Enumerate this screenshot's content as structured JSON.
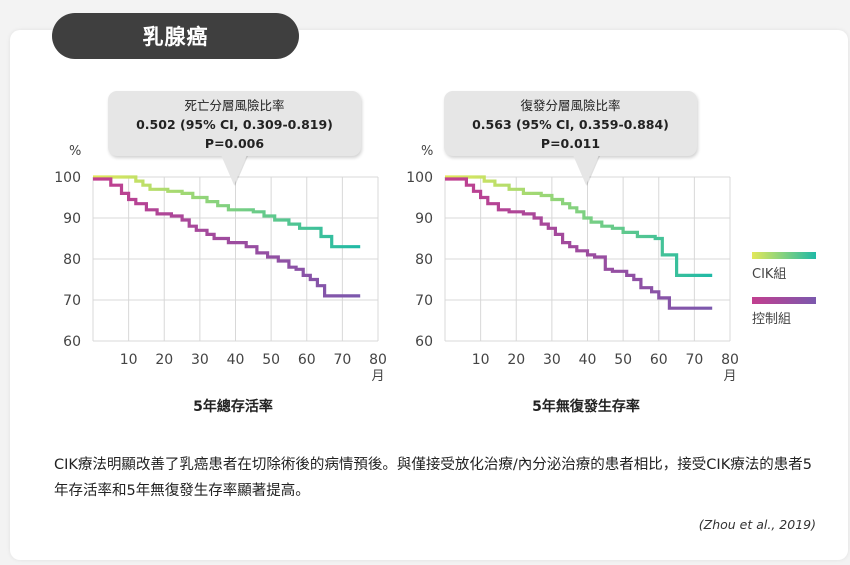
{
  "header": {
    "title": "乳腺癌"
  },
  "units": {
    "percent": "%",
    "month": "月"
  },
  "legend": [
    {
      "label": "CIK組",
      "color_start": "#e3e85a",
      "color_end": "#1fb9a6"
    },
    {
      "label": "控制組",
      "color_start": "#c23f8f",
      "color_end": "#7b58ad"
    }
  ],
  "description": "CIK療法明顯改善了乳癌患者在切除術後的病情預後。與僅接受放化治療/內分泌治療的患者相比，接受CIK療法的患者5年存活率和5年無復發生存率顯著提高。",
  "citation": "(Zhou et al., 2019)",
  "chart_data": [
    {
      "type": "line",
      "xlabel": "5年總存活率",
      "x_unit": "月",
      "y_unit": "%",
      "xlim": [
        0,
        80
      ],
      "ylim": [
        60,
        100
      ],
      "xticks": [
        10,
        20,
        30,
        40,
        50,
        60,
        70,
        80
      ],
      "yticks": [
        60,
        70,
        80,
        90,
        100
      ],
      "grid": true,
      "annotation": {
        "title": "死亡分層風險比率",
        "stat": "0.502 (95% CI, 0.309-0.819)",
        "p": "P=0.006"
      },
      "series": [
        {
          "name": "CIK組",
          "step": [
            [
              0,
              100
            ],
            [
              11,
              100
            ],
            [
              12,
              99
            ],
            [
              14,
              98
            ],
            [
              16,
              97
            ],
            [
              21,
              96.5
            ],
            [
              25,
              96
            ],
            [
              28,
              95
            ],
            [
              32,
              94
            ],
            [
              35,
              93
            ],
            [
              38,
              92
            ],
            [
              45,
              91.5
            ],
            [
              48,
              90.5
            ],
            [
              51,
              89.5
            ],
            [
              55,
              88.5
            ],
            [
              58,
              87.5
            ],
            [
              64,
              85.5
            ],
            [
              67,
              83
            ],
            [
              75,
              83
            ]
          ]
        },
        {
          "name": "控制組",
          "step": [
            [
              0,
              99.5
            ],
            [
              3,
              99.5
            ],
            [
              5,
              98
            ],
            [
              8,
              96
            ],
            [
              10,
              94.5
            ],
            [
              12,
              93.5
            ],
            [
              15,
              92
            ],
            [
              18,
              91
            ],
            [
              22,
              90.5
            ],
            [
              25,
              89.5
            ],
            [
              27,
              88
            ],
            [
              29,
              87
            ],
            [
              32,
              86
            ],
            [
              34,
              85
            ],
            [
              38,
              84
            ],
            [
              43,
              83
            ],
            [
              46,
              81.5
            ],
            [
              49,
              80.5
            ],
            [
              52,
              79.5
            ],
            [
              55,
              78
            ],
            [
              57,
              77.5
            ],
            [
              59,
              76
            ],
            [
              61,
              75
            ],
            [
              63,
              73.5
            ],
            [
              65,
              71
            ],
            [
              75,
              71
            ]
          ]
        }
      ]
    },
    {
      "type": "line",
      "xlabel": "5年無復發生存率",
      "x_unit": "月",
      "y_unit": "%",
      "xlim": [
        0,
        80
      ],
      "ylim": [
        60,
        100
      ],
      "xticks": [
        10,
        20,
        30,
        40,
        50,
        60,
        70,
        80
      ],
      "yticks": [
        60,
        70,
        80,
        90,
        100
      ],
      "grid": true,
      "annotation": {
        "title": "復發分層風險比率",
        "stat": "0.563 (95% CI, 0.359-0.884)",
        "p": "P=0.011"
      },
      "series": [
        {
          "name": "CIK組",
          "step": [
            [
              0,
              100
            ],
            [
              9,
              100
            ],
            [
              11,
              99
            ],
            [
              14,
              98
            ],
            [
              18,
              97
            ],
            [
              22,
              96
            ],
            [
              27,
              95.5
            ],
            [
              30,
              94.5
            ],
            [
              33,
              93.5
            ],
            [
              35,
              92.5
            ],
            [
              37,
              91.5
            ],
            [
              39,
              90
            ],
            [
              41,
              89
            ],
            [
              44,
              88
            ],
            [
              47,
              87.5
            ],
            [
              50,
              86.5
            ],
            [
              54,
              85.5
            ],
            [
              59,
              85
            ],
            [
              61,
              81
            ],
            [
              64,
              81
            ],
            [
              65,
              76
            ],
            [
              75,
              76
            ]
          ]
        },
        {
          "name": "控制組",
          "step": [
            [
              0,
              99.5
            ],
            [
              4,
              99.5
            ],
            [
              6,
              98
            ],
            [
              8,
              96.5
            ],
            [
              10,
              95
            ],
            [
              12,
              93.5
            ],
            [
              15,
              92
            ],
            [
              18,
              91.5
            ],
            [
              22,
              91
            ],
            [
              25,
              90
            ],
            [
              27,
              88.5
            ],
            [
              29,
              87.5
            ],
            [
              31,
              86
            ],
            [
              33,
              84
            ],
            [
              35,
              83
            ],
            [
              37,
              82
            ],
            [
              40,
              81
            ],
            [
              42,
              80.5
            ],
            [
              45,
              77.5
            ],
            [
              47,
              77
            ],
            [
              51,
              76
            ],
            [
              53,
              75
            ],
            [
              55,
              73
            ],
            [
              58,
              72
            ],
            [
              60,
              70.5
            ],
            [
              63,
              68
            ],
            [
              75,
              68
            ]
          ]
        }
      ]
    }
  ]
}
